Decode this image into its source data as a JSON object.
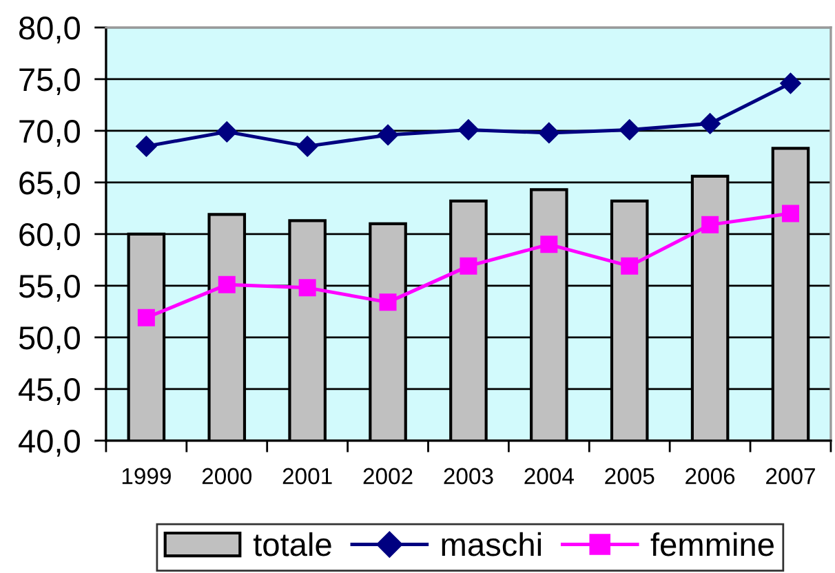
{
  "chart_data": {
    "type": "bar",
    "categories": [
      "1999",
      "2000",
      "2001",
      "2002",
      "2003",
      "2004",
      "2005",
      "2006",
      "2007"
    ],
    "series": [
      {
        "name": "totale",
        "color": "#c0c0c0",
        "values": [
          60.0,
          61.9,
          61.3,
          61.0,
          63.2,
          64.3,
          63.2,
          65.6,
          68.3
        ]
      },
      {
        "name": "maschi",
        "type": "line",
        "color": "#000080",
        "marker": "diamond",
        "line_style": "solid",
        "values": [
          68.5,
          69.9,
          68.5,
          69.6,
          70.1,
          69.8,
          70.1,
          70.7,
          74.6
        ]
      },
      {
        "name": "femmine",
        "type": "line",
        "color": "#ff00ff",
        "marker": "square",
        "line_style": "solid",
        "values": [
          51.9,
          55.1,
          54.8,
          53.4,
          56.9,
          59.0,
          56.9,
          60.9,
          62.0
        ]
      }
    ],
    "ylim": [
      40,
      80
    ],
    "yticks": [
      {
        "value": 40,
        "label": "40,0"
      },
      {
        "value": 45,
        "label": "45,0"
      },
      {
        "value": 50,
        "label": "50,0"
      },
      {
        "value": 55,
        "label": "55,0"
      },
      {
        "value": 60,
        "label": "60,0"
      },
      {
        "value": 65,
        "label": "65,0"
      },
      {
        "value": 70,
        "label": "70,0"
      },
      {
        "value": 75,
        "label": "75,0"
      },
      {
        "value": 80,
        "label": "80,0"
      }
    ],
    "grid": "y",
    "legend": "bottom"
  }
}
